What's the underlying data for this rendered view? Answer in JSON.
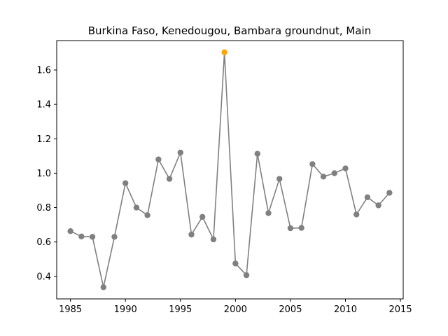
{
  "chart_data": {
    "type": "line",
    "title": "Burkina Faso, Kenedougou, Bambara groundnut, Main",
    "xlabel": "",
    "ylabel": "",
    "x": [
      1985,
      1986,
      1987,
      1988,
      1989,
      1990,
      1991,
      1992,
      1993,
      1994,
      1995,
      1996,
      1997,
      1998,
      1999,
      2000,
      2001,
      2002,
      2003,
      2004,
      2005,
      2006,
      2007,
      2008,
      2009,
      2010,
      2011,
      2012,
      2013,
      2014
    ],
    "series": [
      {
        "values": [
          0.663,
          0.632,
          0.63,
          0.337,
          0.63,
          0.942,
          0.8,
          0.756,
          1.08,
          0.967,
          1.12,
          0.643,
          0.746,
          0.615,
          1.703,
          0.475,
          0.407,
          1.113,
          0.768,
          0.967,
          0.68,
          0.682,
          1.053,
          0.98,
          1.0,
          1.028,
          0.76,
          0.86,
          0.813,
          0.886
        ]
      }
    ],
    "highlight": {
      "x": 1999,
      "y": 1.703
    },
    "xlim": [
      1983.75,
      2015.25
    ],
    "ylim": [
      0.269,
      1.771
    ],
    "xticks": [
      1985,
      1990,
      1995,
      2000,
      2005,
      2010,
      2015
    ],
    "yticks": [
      0.4,
      0.6,
      0.8,
      1.0,
      1.2,
      1.4,
      1.6
    ],
    "ytick_labels": [
      "0.4",
      "0.6",
      "0.8",
      "1.0",
      "1.2",
      "1.4",
      "1.6"
    ],
    "grid": false,
    "colors": {
      "line": "#808080",
      "marker": "#808080",
      "highlight": "#ffa500"
    }
  }
}
